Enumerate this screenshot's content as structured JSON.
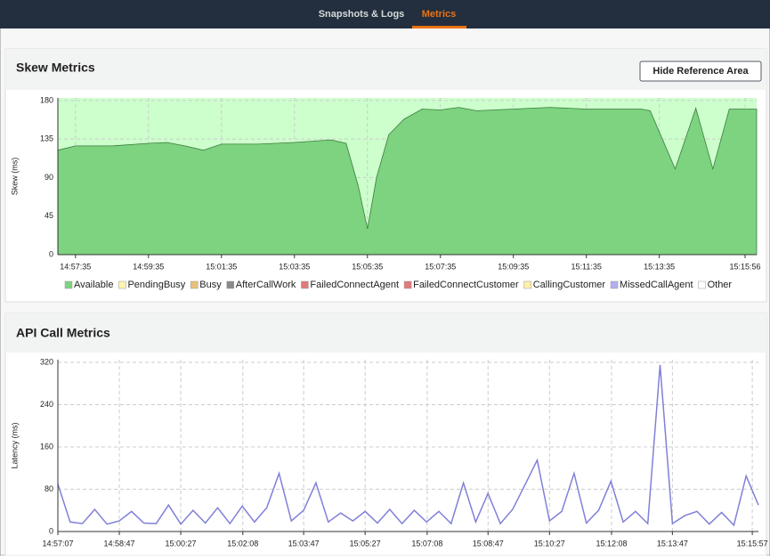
{
  "nav": {
    "tabs": [
      "Snapshots & Logs",
      "Metrics"
    ]
  },
  "controls": {
    "hide_reference": "Hide Reference Area"
  },
  "chart_data": [
    {
      "type": "area",
      "title": "Skew Metrics",
      "y_label": "Skew (ms)",
      "x": [
        "14:57:06",
        "14:57:35",
        "14:58:35",
        "14:59:35",
        "15:00:05",
        "15:00:35",
        "15:01:05",
        "15:01:35",
        "15:02:35",
        "15:03:35",
        "15:04:35",
        "15:05:00",
        "15:05:20",
        "15:05:35",
        "15:05:50",
        "15:06:10",
        "15:06:35",
        "15:07:05",
        "15:07:35",
        "15:08:05",
        "15:08:35",
        "15:09:35",
        "15:10:35",
        "15:11:35",
        "15:12:35",
        "15:13:05",
        "15:13:20",
        "15:14:01",
        "15:14:35",
        "15:15:03",
        "15:15:30",
        "15:16:15"
      ],
      "series": [
        {
          "name": "Available",
          "color": "#7dd37f",
          "values": [
            122,
            127,
            127,
            130,
            131,
            127,
            122,
            129,
            129,
            131,
            134,
            130,
            80,
            30,
            90,
            140,
            158,
            170,
            169,
            172,
            168,
            170,
            172,
            170,
            170,
            170,
            168,
            100,
            171,
            100,
            170,
            170
          ]
        }
      ],
      "legend": [
        {
          "name": "PendingBusy",
          "color": "#fff3b0"
        },
        {
          "name": "Busy",
          "color": "#e8c07a"
        },
        {
          "name": "AfterCallWork",
          "color": "#8a8a8a"
        },
        {
          "name": "FailedConnectAgent",
          "color": "#e07a7a"
        },
        {
          "name": "FailedConnectCustomer",
          "color": "#e07a7a"
        },
        {
          "name": "CallingCustomer",
          "color": "#fff0a8"
        },
        {
          "name": "MissedCallAgent",
          "color": "#b0b0f0"
        },
        {
          "name": "Other",
          "color": "#ffffff"
        }
      ],
      "reference_area_color": "#ccffcc",
      "xlim": [
        "14:57:06",
        "15:16:15"
      ],
      "xticks": [
        "14:57:35",
        "14:59:35",
        "15:01:35",
        "15:03:35",
        "15:05:35",
        "15:07:35",
        "15:09:35",
        "15:11:35",
        "15:13:35",
        "15:15:56"
      ],
      "ylim": [
        0,
        183
      ],
      "yticks": [
        0,
        45,
        90,
        135,
        180
      ],
      "grid": true
    },
    {
      "type": "line",
      "title": "API Call Metrics",
      "y_label": "Latency (ms)",
      "x": [
        "14:57:07",
        "14:57:27",
        "14:57:47",
        "14:58:07",
        "14:58:27",
        "14:58:47",
        "14:59:07",
        "14:59:27",
        "14:59:47",
        "15:00:07",
        "15:00:27",
        "15:00:47",
        "15:01:07",
        "15:01:27",
        "15:01:47",
        "15:02:07",
        "15:02:27",
        "15:02:47",
        "15:03:07",
        "15:03:27",
        "15:03:47",
        "15:04:07",
        "15:04:27",
        "15:04:47",
        "15:05:07",
        "15:05:27",
        "15:05:47",
        "15:06:07",
        "15:06:27",
        "15:06:47",
        "15:07:07",
        "15:07:27",
        "15:07:47",
        "15:08:07",
        "15:08:27",
        "15:08:47",
        "15:09:07",
        "15:09:27",
        "15:09:47",
        "15:10:07",
        "15:10:27",
        "15:10:47",
        "15:11:07",
        "15:11:27",
        "15:11:47",
        "15:12:07",
        "15:12:27",
        "15:12:47",
        "15:13:07",
        "15:13:27",
        "15:13:47",
        "15:14:07",
        "15:14:27",
        "15:14:47",
        "15:15:07",
        "15:15:27",
        "15:15:47",
        "15:16:07"
      ],
      "series": [
        {
          "name": "Latency",
          "color": "#8080d8",
          "values": [
            90,
            18,
            15,
            42,
            14,
            20,
            38,
            16,
            15,
            50,
            14,
            40,
            16,
            45,
            15,
            48,
            18,
            45,
            110,
            20,
            40,
            92,
            18,
            35,
            20,
            38,
            16,
            42,
            15,
            40,
            18,
            38,
            15,
            92,
            18,
            72,
            15,
            42,
            88,
            135,
            20,
            38,
            110,
            16,
            40,
            95,
            18,
            38,
            15,
            315,
            15,
            30,
            38,
            14,
            36,
            12,
            105,
            50
          ]
        }
      ],
      "xlim": [
        "14:57:07",
        "15:16:07"
      ],
      "xticks": [
        "14:57:07",
        "14:58:47",
        "15:00:27",
        "15:02:08",
        "15:03:47",
        "15:05:27",
        "15:07:08",
        "15:08:47",
        "15:10:27",
        "15:12:08",
        "15:13:47",
        "15:15:57"
      ],
      "ylim": [
        0,
        325
      ],
      "yticks": [
        0,
        80,
        160,
        240,
        320
      ],
      "grid": true
    }
  ]
}
